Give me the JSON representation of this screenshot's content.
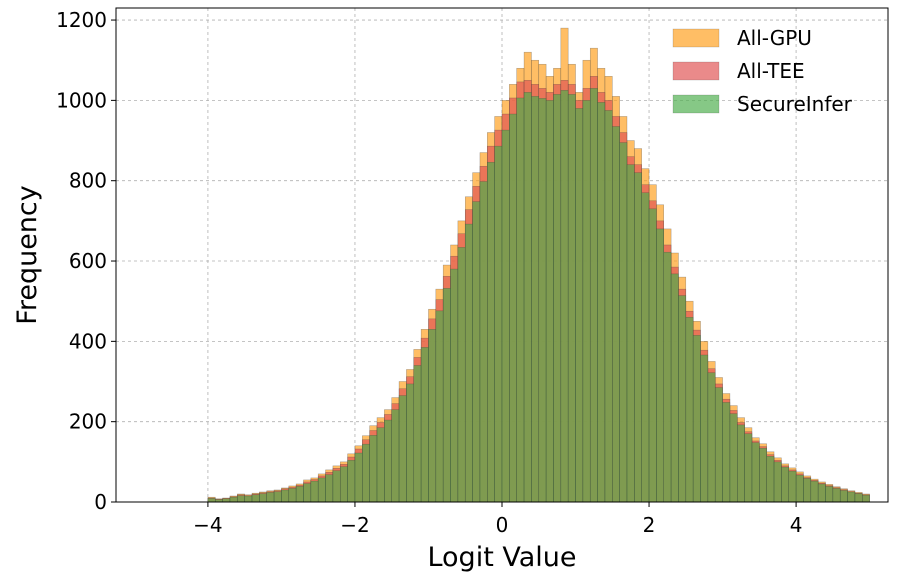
{
  "chart_data": {
    "type": "histogram",
    "xlabel": "Logit Value",
    "ylabel": "Frequency",
    "xlim": [
      -5.25,
      5.25
    ],
    "ylim": [
      0,
      1230
    ],
    "grid": true,
    "legend_position": "top-right",
    "bin_width": 0.1,
    "x_ticks": [
      -4,
      -2,
      0,
      2,
      4
    ],
    "x_tick_labels": [
      "−4",
      "−2",
      "0",
      "2",
      "4"
    ],
    "y_ticks": [
      0,
      200,
      400,
      600,
      800,
      1000,
      1200
    ],
    "y_tick_labels": [
      "0",
      "200",
      "400",
      "600",
      "800",
      "1000",
      "1200"
    ],
    "series": [
      {
        "name": "All-GPU",
        "color": "#ff9f1c",
        "start": -4.0,
        "values": [
          12,
          8,
          10,
          15,
          20,
          18,
          22,
          25,
          28,
          30,
          35,
          40,
          45,
          55,
          60,
          70,
          80,
          90,
          100,
          120,
          140,
          165,
          190,
          210,
          230,
          260,
          300,
          330,
          380,
          430,
          480,
          530,
          590,
          640,
          700,
          760,
          820,
          870,
          920,
          960,
          1000,
          1040,
          1080,
          1120,
          1100,
          1090,
          1060,
          1080,
          1180,
          1090,
          1020,
          1100,
          1130,
          1080,
          1060,
          1010,
          960,
          900,
          880,
          830,
          790,
          740,
          680,
          620,
          560,
          500,
          450,
          400,
          350,
          310,
          270,
          240,
          210,
          185,
          160,
          145,
          125,
          110,
          95,
          85,
          75,
          65,
          57,
          50,
          44,
          38,
          33,
          28,
          24,
          20
        ]
      },
      {
        "name": "All-TEE",
        "color": "#e05252",
        "start": -4.0,
        "values": [
          10,
          7,
          9,
          13,
          18,
          16,
          20,
          23,
          26,
          28,
          33,
          37,
          42,
          50,
          56,
          65,
          74,
          84,
          94,
          112,
          132,
          155,
          178,
          198,
          218,
          245,
          282,
          312,
          360,
          408,
          456,
          504,
          562,
          612,
          668,
          728,
          786,
          836,
          886,
          926,
          966,
          1006,
          1046,
          1050,
          1040,
          1030,
          1020,
          1040,
          1050,
          1040,
          1000,
          1030,
          1060,
          1020,
          1000,
          960,
          920,
          860,
          840,
          790,
          750,
          700,
          640,
          585,
          530,
          475,
          428,
          378,
          332,
          294,
          256,
          228,
          198,
          175,
          152,
          138,
          118,
          104,
          90,
          80,
          70,
          61,
          54,
          47,
          41,
          36,
          31,
          26,
          22,
          18
        ]
      },
      {
        "name": "SecureInfer",
        "color": "#4cae4c",
        "start": -4.0,
        "values": [
          9,
          6,
          8,
          12,
          16,
          15,
          18,
          21,
          24,
          26,
          30,
          34,
          39,
          46,
          52,
          60,
          68,
          78,
          88,
          104,
          122,
          144,
          166,
          185,
          204,
          230,
          265,
          294,
          340,
          385,
          430,
          476,
          532,
          580,
          634,
          692,
          748,
          798,
          846,
          886,
          926,
          966,
          1006,
          1020,
          1010,
          1005,
          1000,
          1015,
          1025,
          1015,
          980,
          1000,
          1030,
          995,
          975,
          935,
          895,
          840,
          820,
          770,
          730,
          680,
          622,
          568,
          514,
          460,
          415,
          366,
          322,
          285,
          248,
          220,
          192,
          170,
          148,
          134,
          114,
          100,
          87,
          77,
          67,
          59,
          52,
          45,
          39,
          34,
          29,
          25,
          21,
          17
        ]
      }
    ]
  }
}
